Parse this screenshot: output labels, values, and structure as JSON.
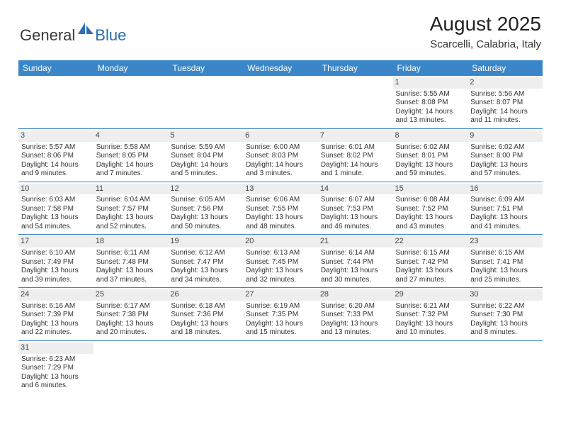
{
  "logo": {
    "general": "General",
    "blue": "Blue"
  },
  "title": "August 2025",
  "location": "Scarcelli, Calabria, Italy",
  "colors": {
    "header_bg": "#3a86c8",
    "header_text": "#ffffff",
    "daynum_bg": "#eeeeee",
    "border": "#3a86c8",
    "logo_blue": "#2b6fb0"
  },
  "weekdays": [
    "Sunday",
    "Monday",
    "Tuesday",
    "Wednesday",
    "Thursday",
    "Friday",
    "Saturday"
  ],
  "weeks": [
    [
      null,
      null,
      null,
      null,
      null,
      {
        "n": "1",
        "sr": "Sunrise: 5:55 AM",
        "ss": "Sunset: 8:08 PM",
        "d1": "Daylight: 14 hours",
        "d2": "and 13 minutes."
      },
      {
        "n": "2",
        "sr": "Sunrise: 5:56 AM",
        "ss": "Sunset: 8:07 PM",
        "d1": "Daylight: 14 hours",
        "d2": "and 11 minutes."
      }
    ],
    [
      {
        "n": "3",
        "sr": "Sunrise: 5:57 AM",
        "ss": "Sunset: 8:06 PM",
        "d1": "Daylight: 14 hours",
        "d2": "and 9 minutes."
      },
      {
        "n": "4",
        "sr": "Sunrise: 5:58 AM",
        "ss": "Sunset: 8:05 PM",
        "d1": "Daylight: 14 hours",
        "d2": "and 7 minutes."
      },
      {
        "n": "5",
        "sr": "Sunrise: 5:59 AM",
        "ss": "Sunset: 8:04 PM",
        "d1": "Daylight: 14 hours",
        "d2": "and 5 minutes."
      },
      {
        "n": "6",
        "sr": "Sunrise: 6:00 AM",
        "ss": "Sunset: 8:03 PM",
        "d1": "Daylight: 14 hours",
        "d2": "and 3 minutes."
      },
      {
        "n": "7",
        "sr": "Sunrise: 6:01 AM",
        "ss": "Sunset: 8:02 PM",
        "d1": "Daylight: 14 hours",
        "d2": "and 1 minute."
      },
      {
        "n": "8",
        "sr": "Sunrise: 6:02 AM",
        "ss": "Sunset: 8:01 PM",
        "d1": "Daylight: 13 hours",
        "d2": "and 59 minutes."
      },
      {
        "n": "9",
        "sr": "Sunrise: 6:02 AM",
        "ss": "Sunset: 8:00 PM",
        "d1": "Daylight: 13 hours",
        "d2": "and 57 minutes."
      }
    ],
    [
      {
        "n": "10",
        "sr": "Sunrise: 6:03 AM",
        "ss": "Sunset: 7:58 PM",
        "d1": "Daylight: 13 hours",
        "d2": "and 54 minutes."
      },
      {
        "n": "11",
        "sr": "Sunrise: 6:04 AM",
        "ss": "Sunset: 7:57 PM",
        "d1": "Daylight: 13 hours",
        "d2": "and 52 minutes."
      },
      {
        "n": "12",
        "sr": "Sunrise: 6:05 AM",
        "ss": "Sunset: 7:56 PM",
        "d1": "Daylight: 13 hours",
        "d2": "and 50 minutes."
      },
      {
        "n": "13",
        "sr": "Sunrise: 6:06 AM",
        "ss": "Sunset: 7:55 PM",
        "d1": "Daylight: 13 hours",
        "d2": "and 48 minutes."
      },
      {
        "n": "14",
        "sr": "Sunrise: 6:07 AM",
        "ss": "Sunset: 7:53 PM",
        "d1": "Daylight: 13 hours",
        "d2": "and 46 minutes."
      },
      {
        "n": "15",
        "sr": "Sunrise: 6:08 AM",
        "ss": "Sunset: 7:52 PM",
        "d1": "Daylight: 13 hours",
        "d2": "and 43 minutes."
      },
      {
        "n": "16",
        "sr": "Sunrise: 6:09 AM",
        "ss": "Sunset: 7:51 PM",
        "d1": "Daylight: 13 hours",
        "d2": "and 41 minutes."
      }
    ],
    [
      {
        "n": "17",
        "sr": "Sunrise: 6:10 AM",
        "ss": "Sunset: 7:49 PM",
        "d1": "Daylight: 13 hours",
        "d2": "and 39 minutes."
      },
      {
        "n": "18",
        "sr": "Sunrise: 6:11 AM",
        "ss": "Sunset: 7:48 PM",
        "d1": "Daylight: 13 hours",
        "d2": "and 37 minutes."
      },
      {
        "n": "19",
        "sr": "Sunrise: 6:12 AM",
        "ss": "Sunset: 7:47 PM",
        "d1": "Daylight: 13 hours",
        "d2": "and 34 minutes."
      },
      {
        "n": "20",
        "sr": "Sunrise: 6:13 AM",
        "ss": "Sunset: 7:45 PM",
        "d1": "Daylight: 13 hours",
        "d2": "and 32 minutes."
      },
      {
        "n": "21",
        "sr": "Sunrise: 6:14 AM",
        "ss": "Sunset: 7:44 PM",
        "d1": "Daylight: 13 hours",
        "d2": "and 30 minutes."
      },
      {
        "n": "22",
        "sr": "Sunrise: 6:15 AM",
        "ss": "Sunset: 7:42 PM",
        "d1": "Daylight: 13 hours",
        "d2": "and 27 minutes."
      },
      {
        "n": "23",
        "sr": "Sunrise: 6:15 AM",
        "ss": "Sunset: 7:41 PM",
        "d1": "Daylight: 13 hours",
        "d2": "and 25 minutes."
      }
    ],
    [
      {
        "n": "24",
        "sr": "Sunrise: 6:16 AM",
        "ss": "Sunset: 7:39 PM",
        "d1": "Daylight: 13 hours",
        "d2": "and 22 minutes."
      },
      {
        "n": "25",
        "sr": "Sunrise: 6:17 AM",
        "ss": "Sunset: 7:38 PM",
        "d1": "Daylight: 13 hours",
        "d2": "and 20 minutes."
      },
      {
        "n": "26",
        "sr": "Sunrise: 6:18 AM",
        "ss": "Sunset: 7:36 PM",
        "d1": "Daylight: 13 hours",
        "d2": "and 18 minutes."
      },
      {
        "n": "27",
        "sr": "Sunrise: 6:19 AM",
        "ss": "Sunset: 7:35 PM",
        "d1": "Daylight: 13 hours",
        "d2": "and 15 minutes."
      },
      {
        "n": "28",
        "sr": "Sunrise: 6:20 AM",
        "ss": "Sunset: 7:33 PM",
        "d1": "Daylight: 13 hours",
        "d2": "and 13 minutes."
      },
      {
        "n": "29",
        "sr": "Sunrise: 6:21 AM",
        "ss": "Sunset: 7:32 PM",
        "d1": "Daylight: 13 hours",
        "d2": "and 10 minutes."
      },
      {
        "n": "30",
        "sr": "Sunrise: 6:22 AM",
        "ss": "Sunset: 7:30 PM",
        "d1": "Daylight: 13 hours",
        "d2": "and 8 minutes."
      }
    ],
    [
      {
        "n": "31",
        "sr": "Sunrise: 6:23 AM",
        "ss": "Sunset: 7:29 PM",
        "d1": "Daylight: 13 hours",
        "d2": "and 6 minutes."
      },
      null,
      null,
      null,
      null,
      null,
      null
    ]
  ]
}
